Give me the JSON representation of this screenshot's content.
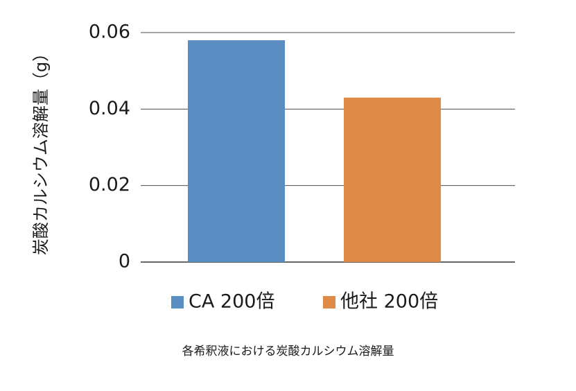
{
  "chart_data": {
    "type": "bar",
    "categories": [
      "CA 200倍",
      "他社 200倍"
    ],
    "values": [
      0.058,
      0.043
    ],
    "colors": [
      "#5a8dc2",
      "#e08a48"
    ],
    "title": "",
    "caption": "各希釈液における炭酸カルシウム溶解量",
    "xlabel": "",
    "ylabel": "炭酸カルシウム溶解量（g）",
    "ylim": [
      0,
      0.06
    ],
    "yticks": [
      {
        "value": 0,
        "label": "0"
      },
      {
        "value": 0.02,
        "label": "0.02"
      },
      {
        "value": 0.04,
        "label": "0.04"
      },
      {
        "value": 0.06,
        "label": "0.06"
      }
    ],
    "grid": true,
    "legend_placement": "bottom",
    "legend": [
      {
        "label": "CA 200倍",
        "color": "#5a8dc2"
      },
      {
        "label": "他社 200倍",
        "color": "#e08a48"
      }
    ]
  }
}
